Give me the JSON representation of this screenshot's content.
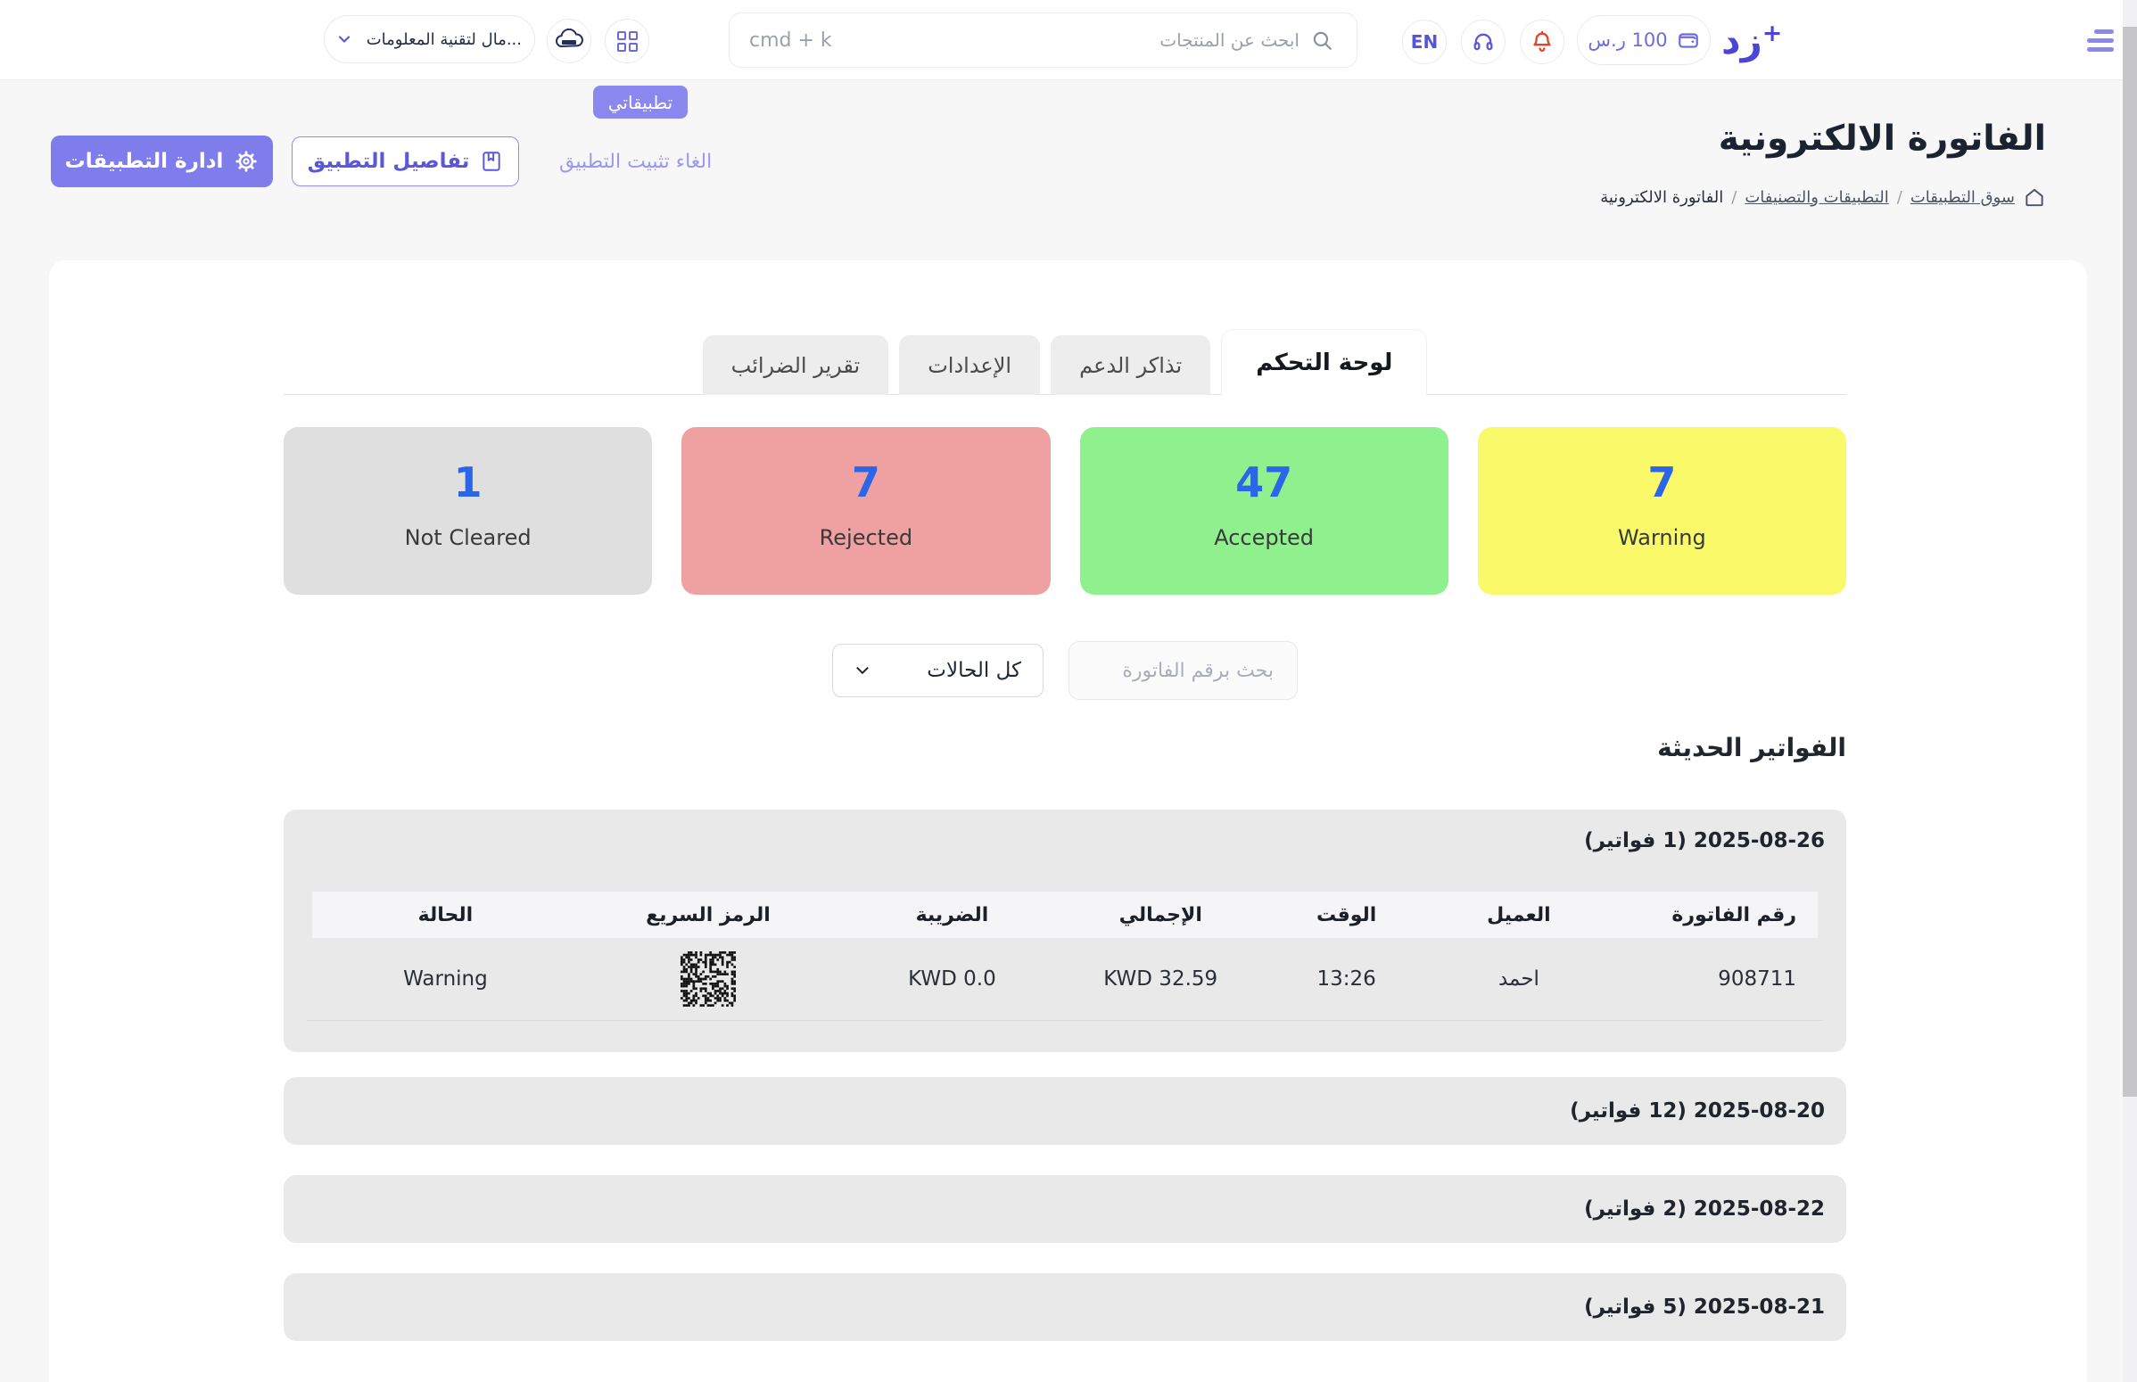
{
  "header": {
    "store_switcher_label": "...مال لتقنية المعلومات",
    "apps_tooltip": "تطبيقاتي",
    "search_placeholder": "ابحث عن المنتجات",
    "search_shortcut": "cmd + k",
    "language": "EN",
    "wallet_balance": "100 ر.س",
    "logo_letter_dal": "د",
    "logo_letter_zay": "ز",
    "logo_plus": "+"
  },
  "page": {
    "title": "الفاتورة الالكترونية",
    "breadcrumb": {
      "item1": "سوق التطبيقات",
      "item2": "التطبيقات والتصنيفات",
      "item3": "الفاتورة الالكترونية",
      "separator": "/"
    },
    "actions": {
      "manage": "ادارة التطبيقات",
      "details": "تفاصيل التطبيق",
      "uninstall": "الغاء تثبيت التطبيق"
    }
  },
  "tabs": [
    {
      "label": "لوحة التحكم"
    },
    {
      "label": "تذاكر الدعم"
    },
    {
      "label": "الإعدادات"
    },
    {
      "label": "تقرير الضرائب"
    }
  ],
  "stats": [
    {
      "value": "1",
      "label": "Not Cleared",
      "bg": "#dfdfdf"
    },
    {
      "value": "7",
      "label": "Rejected",
      "bg": "#efa0a0"
    },
    {
      "value": "47",
      "label": "Accepted",
      "bg": "#8ef18e"
    },
    {
      "value": "7",
      "label": "Warning",
      "bg": "#f9f96a"
    }
  ],
  "filters": {
    "status_select_value": "كل الحالات",
    "invoice_search_placeholder": "بحث برقم الفاتورة"
  },
  "invoices": {
    "section_title": "الفواتير الحديثة",
    "headers": [
      "رقم الفاتورة",
      "العميل",
      "الوقت",
      "الإجمالي",
      "الضريبة",
      "الرمز السريع",
      "الحالة"
    ],
    "groups": [
      {
        "title": "2025-08-26 (1 فواتير)",
        "rows": [
          {
            "invoice_no": "908711",
            "customer": "احمد",
            "time": "13:26",
            "total": "KWD 32.59",
            "tax": "KWD 0.0",
            "status": "Warning"
          }
        ]
      },
      {
        "title": "2025-08-20 (12 فواتير)"
      },
      {
        "title": "2025-08-22 (2 فواتير)"
      },
      {
        "title": "2025-08-21 (5 فواتير)"
      }
    ]
  },
  "colors": {
    "accent": "#7f7cec",
    "stat_number": "#2c66e8",
    "bell": "#e2442c",
    "page_bg": "#f7f7f8"
  }
}
